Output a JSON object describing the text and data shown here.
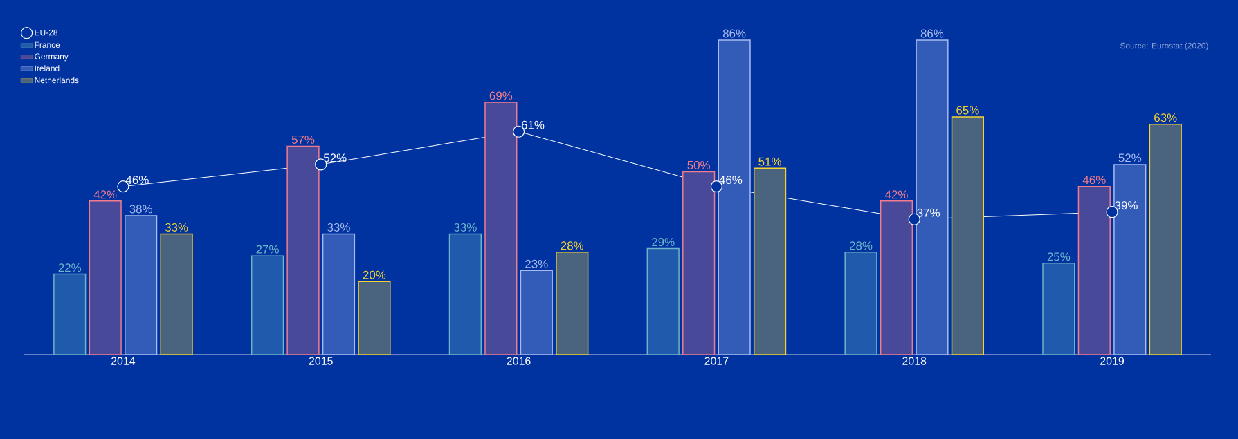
{
  "chart_data": {
    "type": "bar",
    "categories": [
      "2014",
      "2015",
      "2016",
      "2017",
      "2018",
      "2019"
    ],
    "legend": "top left",
    "annotations": [
      "Source: Eurostat (2020)"
    ],
    "series": [
      {
        "name": "EU-28",
        "type": "line",
        "color": "#ffffff",
        "marker": "circle",
        "values": [
          46,
          52,
          61,
          46,
          37,
          39
        ],
        "value_labels": [
          "46%",
          "52%",
          "61%",
          "46%",
          "37%",
          "39%"
        ]
      },
      {
        "name": "France",
        "color": "#6cb4c8",
        "values": [
          22,
          27,
          33,
          29,
          28,
          25
        ],
        "value_labels": [
          "22%",
          "27%",
          "33%",
          "29%",
          "28%",
          "25%"
        ]
      },
      {
        "name": "Germany",
        "color": "#f27c8c",
        "values": [
          42,
          57,
          69,
          50,
          42,
          46
        ],
        "value_labels": [
          "42%",
          "57%",
          "69%",
          "50%",
          "42%",
          "46%"
        ]
      },
      {
        "name": "Ireland",
        "color": "#a9bcf2",
        "values": [
          38,
          33,
          23,
          86,
          86,
          52
        ],
        "value_labels": [
          "38%",
          "33%",
          "23%",
          "86%",
          "86%",
          "52%"
        ]
      },
      {
        "name": "Netherlands",
        "color": "#f7d330",
        "values": [
          33,
          20,
          28,
          51,
          65,
          63
        ],
        "value_labels": [
          "33%",
          "20%",
          "28%",
          "51%",
          "65%",
          "63%"
        ]
      }
    ]
  }
}
